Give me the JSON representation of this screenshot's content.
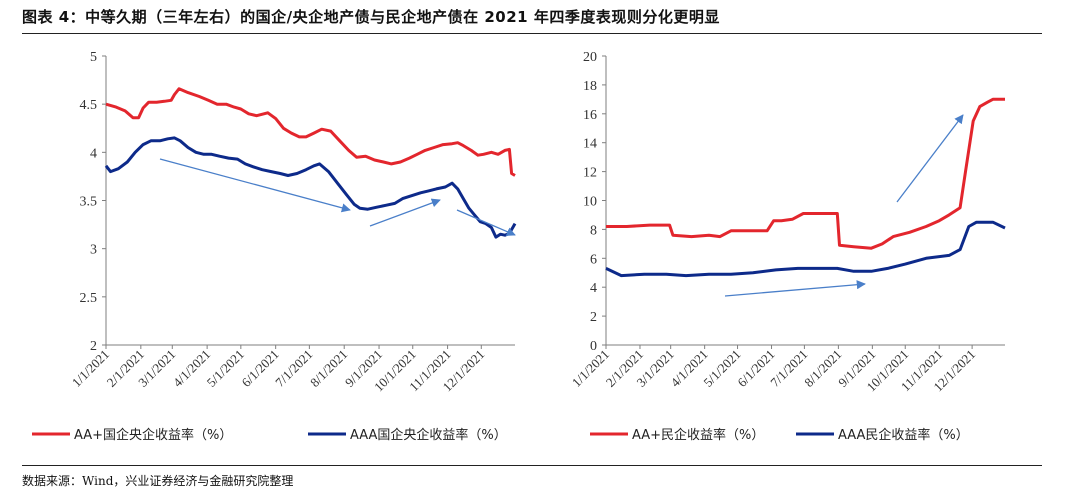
{
  "header": {
    "title": "图表 4：中等久期（三年左右）的国企/央企地产债与民企地产债在 2021 年四季度表现则分化更明显"
  },
  "footer": {
    "source": "数据来源：Wind，兴业证券经济与金融研究院整理"
  },
  "colors": {
    "red": "#e3262d",
    "navy": "#0d2a8a",
    "arrow": "#4a7fc9",
    "axis": "#7f7f7f"
  },
  "chart_data": [
    {
      "type": "line",
      "ylim": [
        2,
        5
      ],
      "yticks": [
        "2",
        "2.5",
        "3",
        "3.5",
        "4",
        "4.5",
        "5"
      ],
      "x_start": "2021-01-01",
      "x_end": "2021-12-31",
      "xticks": [
        "1/1/2021",
        "2/1/2021",
        "3/1/2021",
        "4/1/2021",
        "5/1/2021",
        "6/1/2021",
        "7/1/2021",
        "8/1/2021",
        "9/1/2021",
        "10/1/2021",
        "11/1/2021",
        "12/1/2021"
      ],
      "legend_position": "bottom",
      "series": [
        {
          "name": "AA+国企央企收益率（%）",
          "color": "#e3262d",
          "points": [
            [
              "2021-01-01",
              4.5
            ],
            [
              "2021-01-10",
              4.47
            ],
            [
              "2021-01-18",
              4.43
            ],
            [
              "2021-01-25",
              4.36
            ],
            [
              "2021-01-30",
              4.36
            ],
            [
              "2021-02-03",
              4.46
            ],
            [
              "2021-02-08",
              4.52
            ],
            [
              "2021-02-15",
              4.52
            ],
            [
              "2021-02-22",
              4.53
            ],
            [
              "2021-02-28",
              4.54
            ],
            [
              "2021-03-03",
              4.6
            ],
            [
              "2021-03-07",
              4.66
            ],
            [
              "2021-03-15",
              4.62
            ],
            [
              "2021-03-25",
              4.58
            ],
            [
              "2021-04-02",
              4.54
            ],
            [
              "2021-04-10",
              4.5
            ],
            [
              "2021-04-18",
              4.5
            ],
            [
              "2021-04-25",
              4.47
            ],
            [
              "2021-05-01",
              4.45
            ],
            [
              "2021-05-08",
              4.4
            ],
            [
              "2021-05-15",
              4.38
            ],
            [
              "2021-05-25",
              4.41
            ],
            [
              "2021-06-01",
              4.35
            ],
            [
              "2021-06-08",
              4.25
            ],
            [
              "2021-06-15",
              4.2
            ],
            [
              "2021-06-22",
              4.16
            ],
            [
              "2021-06-28",
              4.16
            ],
            [
              "2021-07-05",
              4.2
            ],
            [
              "2021-07-12",
              4.24
            ],
            [
              "2021-07-20",
              4.22
            ],
            [
              "2021-07-28",
              4.12
            ],
            [
              "2021-08-05",
              4.02
            ],
            [
              "2021-08-12",
              3.95
            ],
            [
              "2021-08-20",
              3.96
            ],
            [
              "2021-08-28",
              3.92
            ],
            [
              "2021-09-05",
              3.9
            ],
            [
              "2021-09-12",
              3.88
            ],
            [
              "2021-09-20",
              3.9
            ],
            [
              "2021-09-28",
              3.94
            ],
            [
              "2021-10-05",
              3.98
            ],
            [
              "2021-10-12",
              4.02
            ],
            [
              "2021-10-20",
              4.05
            ],
            [
              "2021-10-28",
              4.08
            ],
            [
              "2021-11-05",
              4.09
            ],
            [
              "2021-11-10",
              4.1
            ],
            [
              "2021-11-15",
              4.07
            ],
            [
              "2021-11-22",
              4.02
            ],
            [
              "2021-11-28",
              3.97
            ],
            [
              "2021-12-03",
              3.98
            ],
            [
              "2021-12-10",
              4.0
            ],
            [
              "2021-12-16",
              3.98
            ],
            [
              "2021-12-22",
              4.02
            ],
            [
              "2021-12-26",
              4.03
            ],
            [
              "2021-12-28",
              3.78
            ],
            [
              "2021-12-31",
              3.76
            ]
          ]
        },
        {
          "name": "AAA国企央企收益率（%）",
          "color": "#0d2a8a",
          "points": [
            [
              "2021-01-01",
              3.86
            ],
            [
              "2021-01-05",
              3.8
            ],
            [
              "2021-01-12",
              3.83
            ],
            [
              "2021-01-20",
              3.9
            ],
            [
              "2021-01-27",
              4.0
            ],
            [
              "2021-02-03",
              4.08
            ],
            [
              "2021-02-10",
              4.12
            ],
            [
              "2021-02-18",
              4.12
            ],
            [
              "2021-02-25",
              4.14
            ],
            [
              "2021-03-03",
              4.15
            ],
            [
              "2021-03-08",
              4.12
            ],
            [
              "2021-03-15",
              4.05
            ],
            [
              "2021-03-22",
              4.0
            ],
            [
              "2021-03-29",
              3.98
            ],
            [
              "2021-04-05",
              3.98
            ],
            [
              "2021-04-12",
              3.96
            ],
            [
              "2021-04-20",
              3.94
            ],
            [
              "2021-04-28",
              3.93
            ],
            [
              "2021-05-05",
              3.88
            ],
            [
              "2021-05-12",
              3.85
            ],
            [
              "2021-05-20",
              3.82
            ],
            [
              "2021-05-28",
              3.8
            ],
            [
              "2021-06-05",
              3.78
            ],
            [
              "2021-06-12",
              3.76
            ],
            [
              "2021-06-20",
              3.78
            ],
            [
              "2021-06-28",
              3.82
            ],
            [
              "2021-07-05",
              3.86
            ],
            [
              "2021-07-10",
              3.88
            ],
            [
              "2021-07-18",
              3.8
            ],
            [
              "2021-07-26",
              3.68
            ],
            [
              "2021-08-03",
              3.56
            ],
            [
              "2021-08-10",
              3.46
            ],
            [
              "2021-08-15",
              3.42
            ],
            [
              "2021-08-22",
              3.41
            ],
            [
              "2021-08-30",
              3.43
            ],
            [
              "2021-09-07",
              3.45
            ],
            [
              "2021-09-15",
              3.47
            ],
            [
              "2021-09-22",
              3.52
            ],
            [
              "2021-09-30",
              3.55
            ],
            [
              "2021-10-08",
              3.58
            ],
            [
              "2021-10-15",
              3.6
            ],
            [
              "2021-10-22",
              3.62
            ],
            [
              "2021-10-30",
              3.64
            ],
            [
              "2021-11-05",
              3.68
            ],
            [
              "2021-11-10",
              3.62
            ],
            [
              "2021-11-15",
              3.52
            ],
            [
              "2021-11-20",
              3.42
            ],
            [
              "2021-11-25",
              3.35
            ],
            [
              "2021-11-30",
              3.28
            ],
            [
              "2021-12-05",
              3.26
            ],
            [
              "2021-12-10",
              3.22
            ],
            [
              "2021-12-14",
              3.12
            ],
            [
              "2021-12-18",
              3.15
            ],
            [
              "2021-12-22",
              3.14
            ],
            [
              "2021-12-26",
              3.16
            ],
            [
              "2021-12-29",
              3.22
            ],
            [
              "2021-12-31",
              3.26
            ]
          ]
        }
      ]
    },
    {
      "type": "line",
      "ylim": [
        0,
        20
      ],
      "yticks": [
        "0",
        "2",
        "4",
        "6",
        "8",
        "10",
        "12",
        "14",
        "16",
        "18",
        "20"
      ],
      "x_start": "2021-01-01",
      "x_end": "2021-12-31",
      "xticks": [
        "1/1/2021",
        "2/1/2021",
        "3/1/2021",
        "4/1/2021",
        "5/1/2021",
        "6/1/2021",
        "7/1/2021",
        "8/1/2021",
        "9/1/2021",
        "10/1/2021",
        "11/1/2021",
        "12/1/2021"
      ],
      "legend_position": "bottom",
      "series": [
        {
          "name": "AA+民企收益率（%）",
          "color": "#e3262d",
          "points": [
            [
              "2021-01-01",
              8.2
            ],
            [
              "2021-01-20",
              8.2
            ],
            [
              "2021-02-10",
              8.3
            ],
            [
              "2021-02-28",
              8.3
            ],
            [
              "2021-03-03",
              7.6
            ],
            [
              "2021-03-20",
              7.5
            ],
            [
              "2021-04-05",
              7.6
            ],
            [
              "2021-04-15",
              7.5
            ],
            [
              "2021-04-25",
              7.9
            ],
            [
              "2021-05-10",
              7.9
            ],
            [
              "2021-05-28",
              7.9
            ],
            [
              "2021-06-03",
              8.6
            ],
            [
              "2021-06-10",
              8.6
            ],
            [
              "2021-06-20",
              8.7
            ],
            [
              "2021-06-30",
              9.1
            ],
            [
              "2021-07-15",
              9.1
            ],
            [
              "2021-07-31",
              9.1
            ],
            [
              "2021-08-02",
              6.9
            ],
            [
              "2021-08-15",
              6.8
            ],
            [
              "2021-08-31",
              6.7
            ],
            [
              "2021-09-10",
              7.0
            ],
            [
              "2021-09-20",
              7.5
            ],
            [
              "2021-10-05",
              7.8
            ],
            [
              "2021-10-20",
              8.2
            ],
            [
              "2021-11-01",
              8.6
            ],
            [
              "2021-11-10",
              9.0
            ],
            [
              "2021-11-20",
              9.5
            ],
            [
              "2021-11-25",
              12.0
            ],
            [
              "2021-11-29",
              14.0
            ],
            [
              "2021-12-02",
              15.5
            ],
            [
              "2021-12-08",
              16.5
            ],
            [
              "2021-12-15",
              16.8
            ],
            [
              "2021-12-20",
              17.0
            ],
            [
              "2021-12-31",
              17.0
            ]
          ]
        },
        {
          "name": "AAA民企收益率（%）",
          "color": "#0d2a8a",
          "points": [
            [
              "2021-01-01",
              5.3
            ],
            [
              "2021-01-15",
              4.8
            ],
            [
              "2021-02-05",
              4.9
            ],
            [
              "2021-02-25",
              4.9
            ],
            [
              "2021-03-15",
              4.8
            ],
            [
              "2021-04-05",
              4.9
            ],
            [
              "2021-04-25",
              4.9
            ],
            [
              "2021-05-15",
              5.0
            ],
            [
              "2021-06-05",
              5.2
            ],
            [
              "2021-06-25",
              5.3
            ],
            [
              "2021-07-15",
              5.3
            ],
            [
              "2021-07-31",
              5.3
            ],
            [
              "2021-08-15",
              5.1
            ],
            [
              "2021-08-31",
              5.1
            ],
            [
              "2021-09-15",
              5.3
            ],
            [
              "2021-10-01",
              5.6
            ],
            [
              "2021-10-20",
              6.0
            ],
            [
              "2021-11-10",
              6.2
            ],
            [
              "2021-11-20",
              6.6
            ],
            [
              "2021-11-28",
              8.2
            ],
            [
              "2021-12-05",
              8.5
            ],
            [
              "2021-12-20",
              8.5
            ],
            [
              "2021-12-31",
              8.1
            ]
          ]
        }
      ]
    }
  ]
}
